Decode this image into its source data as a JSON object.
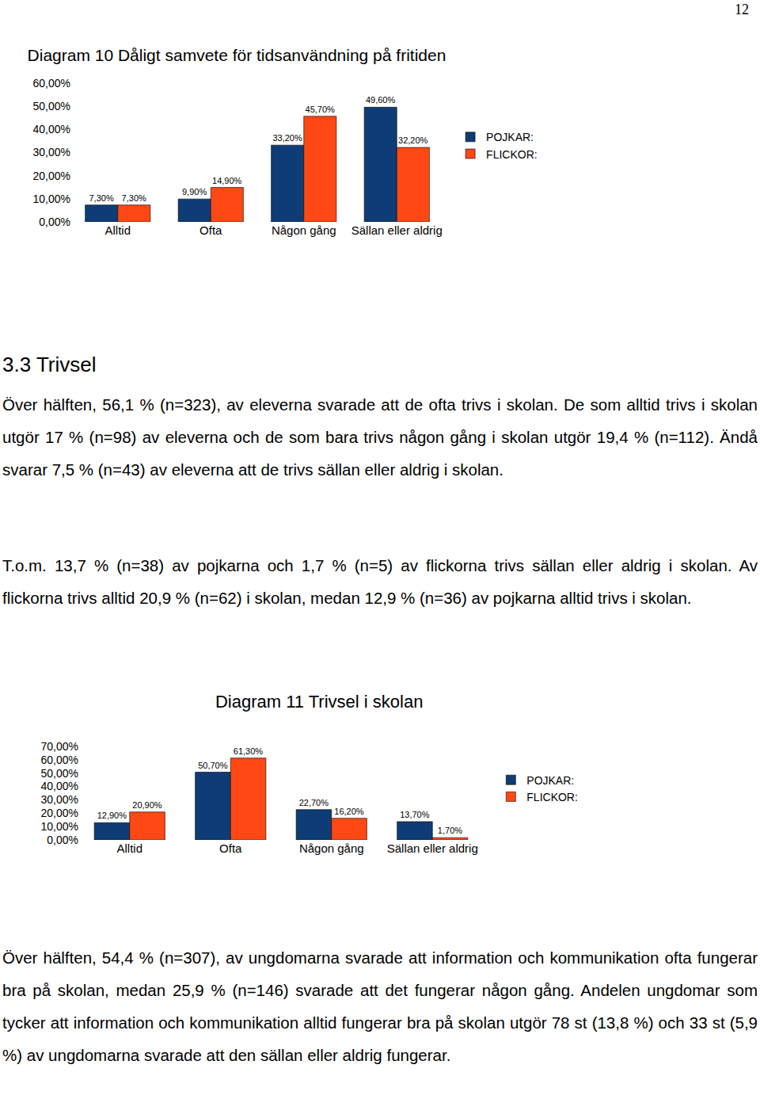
{
  "page_number": "12",
  "chart_data": [
    {
      "type": "bar",
      "title": "Diagram 10 Dåligt samvete för tidsanvändning på fritiden",
      "categories": [
        "Alltid",
        "Ofta",
        "Någon gång",
        "Sällan eller aldrig"
      ],
      "series": [
        {
          "name": "POJKAR:",
          "color": "#0e3c76",
          "values": [
            7.3,
            9.9,
            33.2,
            49.6
          ],
          "value_labels": [
            "7,30%",
            "9,90%",
            "33,20%",
            "49,60%"
          ]
        },
        {
          "name": "FLICKOR:",
          "color": "#ff4814",
          "values": [
            7.3,
            14.9,
            45.7,
            32.2
          ],
          "value_labels": [
            "7,30%",
            "14,90%",
            "45,70%",
            "32,20%"
          ]
        }
      ],
      "ylim": [
        0,
        60
      ],
      "yticks": [
        {
          "value": 0,
          "label": "0,00%"
        },
        {
          "value": 10,
          "label": "10,00%"
        },
        {
          "value": 20,
          "label": "20,00%"
        },
        {
          "value": 30,
          "label": "30,00%"
        },
        {
          "value": 40,
          "label": "40,00%"
        },
        {
          "value": 50,
          "label": "50,00%"
        },
        {
          "value": 60,
          "label": "60,00%"
        }
      ],
      "grid": false,
      "legend": "right",
      "data_labels": true
    },
    {
      "type": "bar",
      "title": "Diagram 11 Trivsel i skolan",
      "categories": [
        "Alltid",
        "Ofta",
        "Någon gång",
        "Sällan eller aldrig"
      ],
      "series": [
        {
          "name": "POJKAR:",
          "color": "#0e3c76",
          "values": [
            12.9,
            50.7,
            22.7,
            13.7
          ],
          "value_labels": [
            "12,90%",
            "50,70%",
            "22,70%",
            "13,70%"
          ]
        },
        {
          "name": "FLICKOR:",
          "color": "#ff4814",
          "values": [
            20.9,
            61.3,
            16.2,
            1.7
          ],
          "value_labels": [
            "20,90%",
            "61,30%",
            "16,20%",
            "1,70%"
          ]
        }
      ],
      "ylim": [
        0,
        70
      ],
      "yticks": [
        {
          "value": 0,
          "label": "0,00%"
        },
        {
          "value": 10,
          "label": "10,00%"
        },
        {
          "value": 20,
          "label": "20,00%"
        },
        {
          "value": 30,
          "label": "30,00%"
        },
        {
          "value": 40,
          "label": "40,00%"
        },
        {
          "value": 50,
          "label": "50,00%"
        },
        {
          "value": 60,
          "label": "60,00%"
        },
        {
          "value": 70,
          "label": "70,00%"
        }
      ],
      "grid": false,
      "legend": "right",
      "data_labels": true
    }
  ],
  "text": {
    "heading": "3.3 Trivsel",
    "paragraphs_after_chart_1": [
      "Över hälften, 56,1 % (n=323), av eleverna svarade att de ofta trivs i skolan. De som alltid trivs i skolan utgör 17 % (n=98) av eleverna och de som bara trivs någon gång i skolan utgör 19,4 % (n=112). Ändå svarar 7,5 % (n=43) av eleverna att de trivs sällan eller aldrig i skolan.",
      "T.o.m. 13,7 % (n=38) av pojkarna och 1,7 % (n=5) av flickorna trivs sällan eller aldrig i skolan. Av flickorna trivs alltid 20,9 % (n=62) i skolan, medan 12,9 % (n=36) av pojkarna alltid trivs i skolan."
    ],
    "paragraphs_after_chart_2": [
      "Över hälften, 54,4 % (n=307), av ungdomarna svarade att information och kommunikation ofta fungerar bra på skolan, medan 25,9 % (n=146) svarade att det fungerar någon gång. Andelen ungdomar som tycker att information och kommunikation alltid fungerar bra på skolan utgör 78 st (13,8 %) och 33 st (5,9 %) av ungdomarna svarade att den sällan eller aldrig fungerar."
    ]
  }
}
